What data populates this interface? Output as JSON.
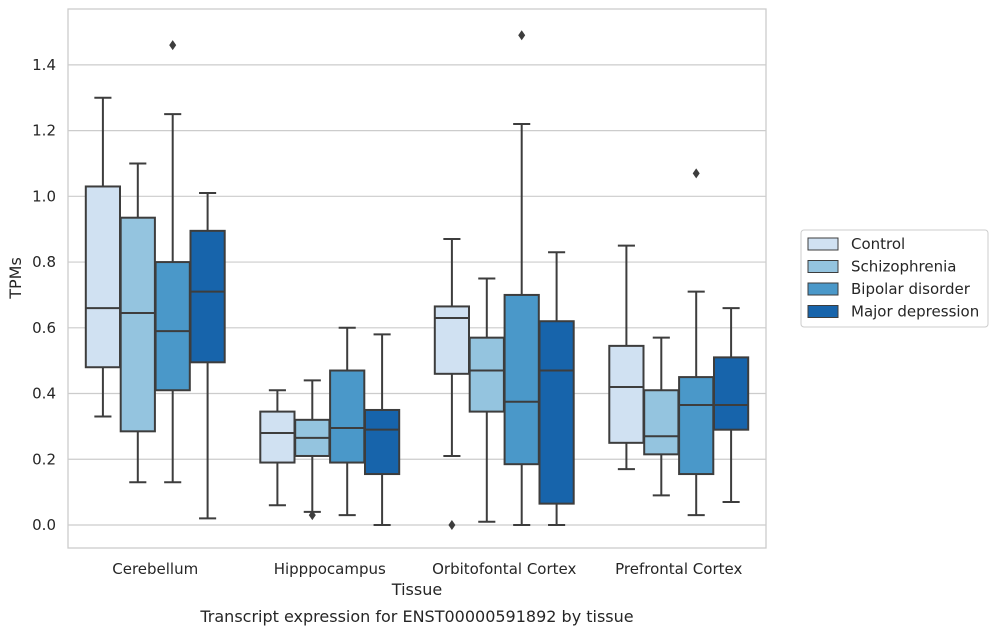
{
  "caption": "Transcript expression for ENST00000591892 by tissue",
  "chart_data": {
    "type": "boxplot",
    "title": "",
    "xlabel": "Tissue",
    "ylabel": "TPMs",
    "ylim": [
      -0.07,
      1.57
    ],
    "yticks": [
      0.0,
      0.2,
      0.4,
      0.6,
      0.8,
      1.0,
      1.2,
      1.4
    ],
    "ytick_labels": [
      "0.0",
      "0.2",
      "0.4",
      "0.6",
      "0.8",
      "1.0",
      "1.2",
      "1.4"
    ],
    "grid": "horizontal",
    "legend_position": "right",
    "categories": [
      "Cerebellum",
      "Hipppocampus",
      "Orbitofontal Cortex",
      "Prefrontal Cortex"
    ],
    "series": [
      {
        "name": "Control",
        "color": "#d0e1f2",
        "boxes": [
          {
            "whisker_low": 0.33,
            "q1": 0.48,
            "median": 0.66,
            "q3": 1.03,
            "whisker_high": 1.3,
            "outliers": []
          },
          {
            "whisker_low": 0.06,
            "q1": 0.19,
            "median": 0.28,
            "q3": 0.345,
            "whisker_high": 0.41,
            "outliers": []
          },
          {
            "whisker_low": 0.21,
            "q1": 0.46,
            "median": 0.63,
            "q3": 0.665,
            "whisker_high": 0.87,
            "outliers": [
              0.0
            ]
          },
          {
            "whisker_low": 0.17,
            "q1": 0.25,
            "median": 0.42,
            "q3": 0.545,
            "whisker_high": 0.85,
            "outliers": []
          }
        ]
      },
      {
        "name": "Schizophrenia",
        "color": "#94c4df",
        "boxes": [
          {
            "whisker_low": 0.13,
            "q1": 0.285,
            "median": 0.645,
            "q3": 0.935,
            "whisker_high": 1.1,
            "outliers": []
          },
          {
            "whisker_low": 0.04,
            "q1": 0.21,
            "median": 0.265,
            "q3": 0.32,
            "whisker_high": 0.44,
            "outliers": [
              0.03
            ]
          },
          {
            "whisker_low": 0.01,
            "q1": 0.345,
            "median": 0.47,
            "q3": 0.57,
            "whisker_high": 0.75,
            "outliers": []
          },
          {
            "whisker_low": 0.09,
            "q1": 0.215,
            "median": 0.27,
            "q3": 0.41,
            "whisker_high": 0.57,
            "outliers": []
          }
        ]
      },
      {
        "name": "Bipolar disorder",
        "color": "#4a98c9",
        "boxes": [
          {
            "whisker_low": 0.13,
            "q1": 0.41,
            "median": 0.59,
            "q3": 0.8,
            "whisker_high": 1.25,
            "outliers": [
              1.46
            ]
          },
          {
            "whisker_low": 0.03,
            "q1": 0.19,
            "median": 0.295,
            "q3": 0.47,
            "whisker_high": 0.6,
            "outliers": []
          },
          {
            "whisker_low": 0.0,
            "q1": 0.185,
            "median": 0.375,
            "q3": 0.7,
            "whisker_high": 1.22,
            "outliers": [
              1.49
            ]
          },
          {
            "whisker_low": 0.03,
            "q1": 0.155,
            "median": 0.365,
            "q3": 0.45,
            "whisker_high": 0.71,
            "outliers": [
              1.07
            ]
          }
        ]
      },
      {
        "name": "Major depression",
        "color": "#1764ab",
        "boxes": [
          {
            "whisker_low": 0.02,
            "q1": 0.495,
            "median": 0.71,
            "q3": 0.895,
            "whisker_high": 1.01,
            "outliers": []
          },
          {
            "whisker_low": 0.0,
            "q1": 0.155,
            "median": 0.29,
            "q3": 0.35,
            "whisker_high": 0.58,
            "outliers": []
          },
          {
            "whisker_low": 0.0,
            "q1": 0.065,
            "median": 0.47,
            "q3": 0.62,
            "whisker_high": 0.83,
            "outliers": []
          },
          {
            "whisker_low": 0.07,
            "q1": 0.29,
            "median": 0.365,
            "q3": 0.51,
            "whisker_high": 0.66,
            "outliers": []
          }
        ]
      }
    ],
    "style": {
      "line_color": "#3d3d3d",
      "grid_color": "#cccccc",
      "frame_color": "#cccccc"
    }
  }
}
